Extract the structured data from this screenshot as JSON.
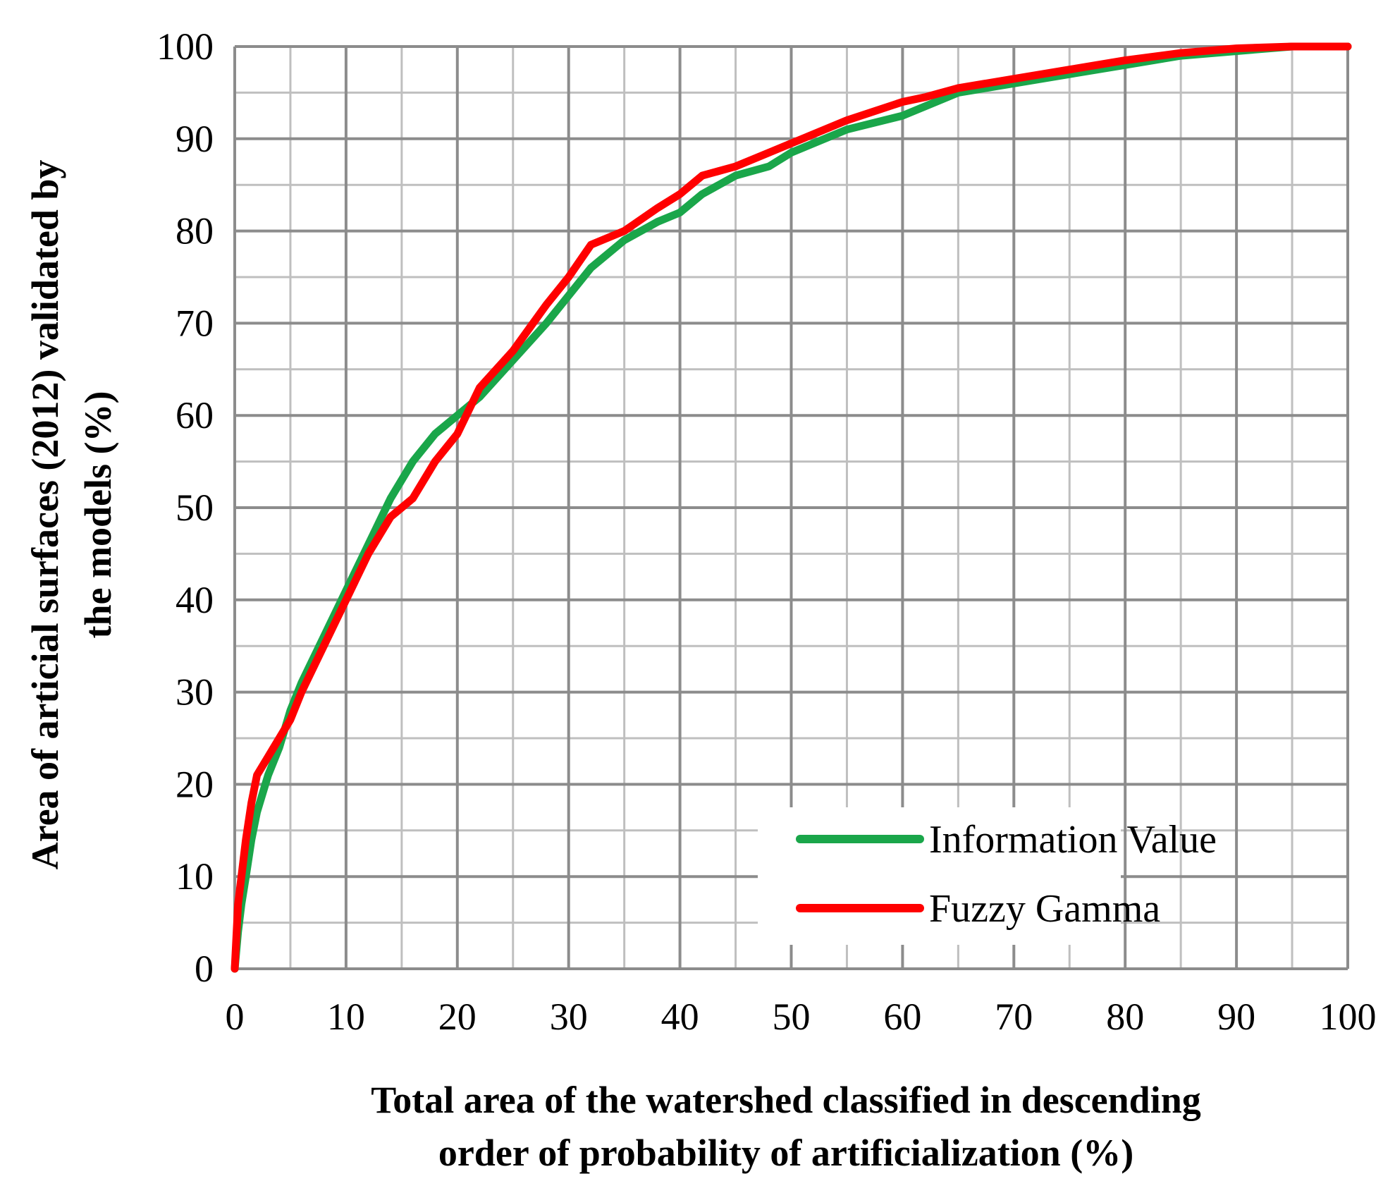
{
  "chart_data": {
    "type": "line",
    "title": "",
    "xlabel": [
      "Total area of the watershed classified in descending",
      "order of probability of artificialization (%)"
    ],
    "ylabel": [
      "Area of articial surfaces (2012) validated by",
      "the models (%)"
    ],
    "xlim": [
      0,
      100
    ],
    "ylim": [
      0,
      100
    ],
    "x_ticks": [
      "0",
      "10",
      "20",
      "30",
      "40",
      "50",
      "60",
      "70",
      "80",
      "90",
      "100"
    ],
    "y_ticks": [
      "0",
      "10",
      "20",
      "30",
      "40",
      "50",
      "60",
      "70",
      "80",
      "90",
      "100"
    ],
    "grid": true,
    "legend_position": "bottom-right",
    "series": [
      {
        "name": "Information Value",
        "color": "#1aa64a",
        "x": [
          0,
          0.3,
          0.6,
          1,
          1.5,
          2,
          3,
          4,
          5,
          6,
          8,
          10,
          12,
          14,
          16,
          18,
          20,
          22,
          25,
          28,
          30,
          32,
          35,
          38,
          40,
          42,
          45,
          48,
          50,
          55,
          60,
          62,
          65,
          70,
          75,
          80,
          85,
          90,
          95,
          100
        ],
        "y": [
          0,
          4,
          7,
          10,
          14,
          17,
          21,
          24,
          28,
          31,
          36,
          41,
          46,
          51,
          55,
          58,
          60,
          62,
          66,
          70,
          73,
          76,
          79,
          81,
          82,
          84,
          86,
          87,
          88.5,
          91,
          92.5,
          93.5,
          95,
          96,
          97,
          98,
          99,
          99.5,
          100,
          100
        ]
      },
      {
        "name": "Fuzzy Gamma",
        "color": "#ff0000",
        "x": [
          0,
          0.3,
          0.6,
          1,
          1.5,
          2,
          3,
          4,
          5,
          6,
          8,
          10,
          12,
          14,
          16,
          18,
          20,
          22,
          25,
          28,
          30,
          32,
          35,
          38,
          40,
          42,
          45,
          48,
          50,
          55,
          60,
          62,
          65,
          70,
          75,
          80,
          85,
          90,
          95,
          100
        ],
        "y": [
          0,
          7,
          10,
          14,
          18,
          21,
          23,
          25,
          27,
          30,
          35,
          40,
          45,
          49,
          51,
          55,
          58,
          63,
          67,
          72,
          75,
          78.5,
          80,
          82.5,
          84,
          86,
          87,
          88.5,
          89.5,
          92,
          94,
          94.5,
          95.5,
          96.5,
          97.5,
          98.5,
          99.3,
          99.8,
          100,
          100
        ]
      }
    ]
  }
}
